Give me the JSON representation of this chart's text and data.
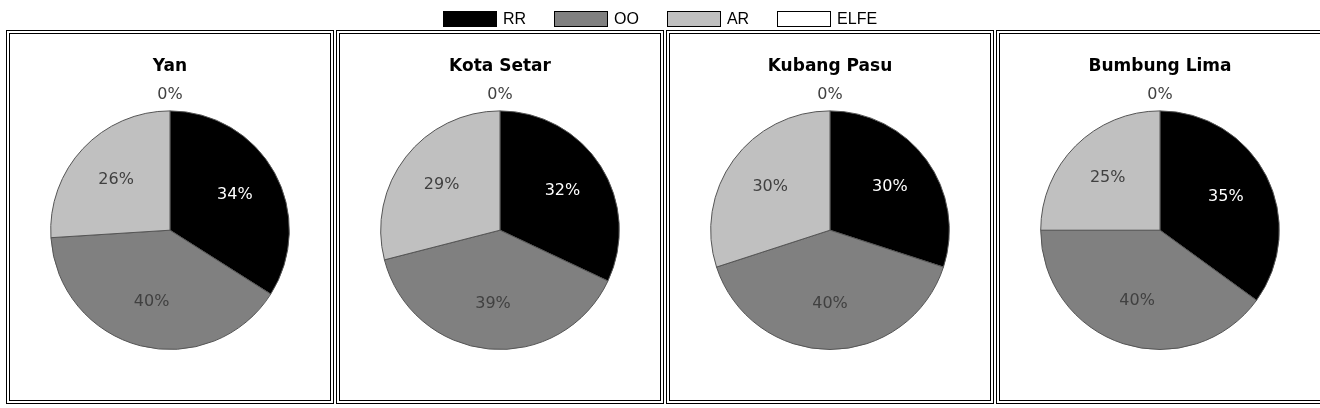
{
  "chart_data": [
    {
      "type": "pie",
      "title": "Yan",
      "legend": "top",
      "categories": [
        "RR",
        "OO",
        "AR",
        "ELFE"
      ],
      "values": [
        34,
        40,
        26,
        0
      ],
      "colors": [
        "#000000",
        "#808080",
        "#c0c0c0",
        "#ffffff"
      ],
      "value_labels": [
        "34%",
        "40%",
        "26%",
        "0%"
      ]
    },
    {
      "type": "pie",
      "title": "Kota Setar",
      "categories": [
        null,
        null,
        null,
        null
      ],
      "values": [
        32,
        39,
        29,
        0
      ],
      "colors": [
        "#000000",
        "#808080",
        "#c0c0c0",
        "#ffffff"
      ],
      "value_labels": [
        "32%",
        "39%",
        "29%",
        "0%"
      ]
    },
    {
      "type": "pie",
      "title": "Kubang Pasu",
      "categories": [
        null,
        null,
        null,
        null
      ],
      "values": [
        30,
        40,
        30,
        0
      ],
      "colors": [
        "#000000",
        "#808080",
        "#c0c0c0",
        "#ffffff"
      ],
      "value_labels": [
        "30%",
        "40%",
        "30%",
        "0%"
      ]
    },
    {
      "type": "pie",
      "title": "Bumbung Lima",
      "categories": [
        null,
        null,
        null,
        null
      ],
      "values": [
        35,
        40,
        25,
        0
      ],
      "colors": [
        "#000000",
        "#808080",
        "#c0c0c0",
        "#ffffff"
      ],
      "value_labels": [
        "35%",
        "40%",
        "25%",
        "0%"
      ]
    }
  ]
}
